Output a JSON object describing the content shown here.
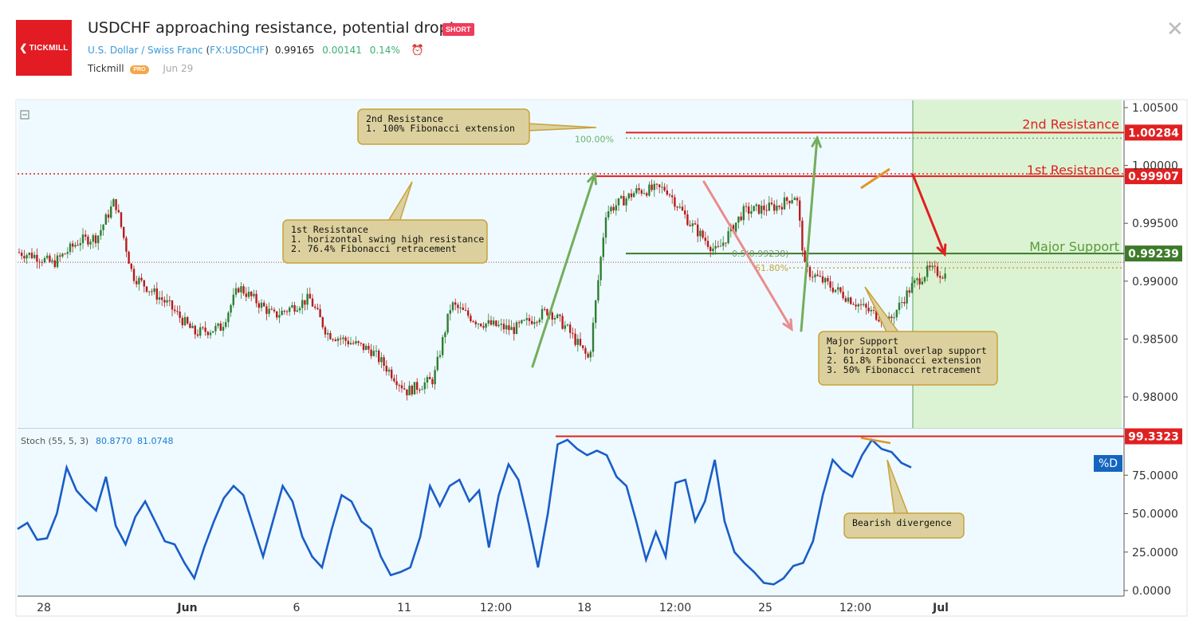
{
  "header": {
    "logo_text": "TICKMILL",
    "title": "USDCHF approaching resistance, potential drop!",
    "badge": "SHORT",
    "symbol_name": "U.S. Dollar / Swiss Franc",
    "symbol_code_open": "(",
    "symbol_code": "FX:USDCHF",
    "symbol_code_close": ")",
    "price": "0.99165",
    "change": "0.00141",
    "change_pct": "0.14%",
    "author": "Tickmill",
    "author_badge": "PRO",
    "date": "Jun 29"
  },
  "colors": {
    "price_bg": "#eefaff",
    "forecast_bg": "#dcf3d3",
    "resistance": "#e02020",
    "support": "#3d7a2a",
    "stoch_line": "#1a5dc8",
    "candle_up": "#2f7d32",
    "candle_down": "#b71c1c",
    "callout_bg": "#dcd19e",
    "callout_border": "#c9a13a"
  },
  "chart_data": [
    {
      "type": "candlestick",
      "title": "USDCHF approaching resistance, potential drop!",
      "ylim": [
        0.9775,
        1.0052
      ],
      "yticks": [
        "1.00500",
        "1.00000",
        "0.99500",
        "0.99000",
        "0.98500",
        "0.98000"
      ],
      "xticks": [
        "28",
        "Jun",
        "6",
        "11",
        "12:00",
        "18",
        "12:00",
        "25",
        "12:00",
        "Jul"
      ],
      "close_path": [
        [
          0,
          0.9925
        ],
        [
          0.02,
          0.9922
        ],
        [
          0.04,
          0.9915
        ],
        [
          0.07,
          0.9935
        ],
        [
          0.09,
          0.9938
        ],
        [
          0.11,
          0.997
        ],
        [
          0.13,
          0.9905
        ],
        [
          0.17,
          0.988
        ],
        [
          0.2,
          0.9855
        ],
        [
          0.23,
          0.986
        ],
        [
          0.25,
          0.9895
        ],
        [
          0.29,
          0.987
        ],
        [
          0.33,
          0.9885
        ],
        [
          0.35,
          0.9855
        ],
        [
          0.4,
          0.984
        ],
        [
          0.44,
          0.9805
        ],
        [
          0.47,
          0.9815
        ],
        [
          0.49,
          0.988
        ],
        [
          0.52,
          0.9865
        ],
        [
          0.56,
          0.9858
        ],
        [
          0.6,
          0.9875
        ],
        [
          0.62,
          0.986
        ],
        [
          0.646,
          0.9832
        ],
        [
          0.665,
          0.996
        ],
        [
          0.7,
          0.9978
        ],
        [
          0.733,
          0.998
        ],
        [
          0.76,
          0.995
        ],
        [
          0.79,
          0.9925
        ],
        [
          0.82,
          0.996
        ],
        [
          0.86,
          0.9965
        ],
        [
          0.88,
          0.9975
        ],
        [
          0.89,
          0.991
        ],
        [
          0.93,
          0.989
        ],
        [
          0.96,
          0.9875
        ],
        [
          0.985,
          0.9865
        ],
        [
          1.01,
          0.9895
        ],
        [
          1.03,
          0.991
        ],
        [
          1.05,
          0.9905
        ],
        [
          1.075,
          0.996
        ],
        [
          1.1,
          0.997
        ],
        [
          1.13,
          0.9985
        ],
        [
          1.15,
          0.993
        ],
        [
          1.17,
          0.9905
        ],
        [
          1.19,
          0.9915
        ]
      ],
      "price_tags": [
        {
          "value": "1.00284",
          "color": "#e02020"
        },
        {
          "value": "0.99907",
          "color": "#e02020"
        },
        {
          "value": "0.99239",
          "color": "#3d7a2a"
        }
      ],
      "levels": [
        {
          "name": "2nd Resistance",
          "value": 1.00284
        },
        {
          "name": "1st Resistance",
          "value": 0.99907
        },
        {
          "name": "Major Support",
          "value": 0.99239
        }
      ],
      "fib_labels": [
        "100.00%",
        "0.5(0.99238)",
        "61.80%"
      ],
      "annotations": {
        "r2": [
          "2nd Resistance",
          "1. 100% Fibonacci extension"
        ],
        "r1": [
          "1st Resistance",
          "1. horizontal swing high resistance",
          "2. 76.4% Fibonacci retracement"
        ],
        "sup": [
          "Major Support",
          "1. horizontal overlap support",
          "2. 61.8% Fibonacci extension",
          "3. 50% Fibonacci retracement"
        ]
      }
    },
    {
      "type": "line",
      "title": "Stoch (55, 5, 3)",
      "legend_values": [
        "80.8770",
        "81.0748"
      ],
      "ylim": [
        0,
        100
      ],
      "yticks": [
        "75.0000",
        "50.0000",
        "25.0000",
        "0.0000"
      ],
      "level_tag": "99.3323",
      "series_tag": "%D",
      "divergence_label": "Bearish divergence",
      "series": [
        {
          "values": [
            40,
            44,
            33,
            34,
            50,
            80,
            65,
            58,
            52,
            74,
            42,
            30,
            48,
            58,
            45,
            32,
            30,
            18,
            8,
            28,
            45,
            60,
            68,
            62,
            42,
            22,
            45,
            68,
            58,
            35,
            22,
            15,
            40,
            62,
            58,
            45,
            40,
            22,
            10,
            12,
            15,
            35,
            68,
            55,
            68,
            72,
            58,
            65,
            28,
            62,
            82,
            72,
            45,
            15,
            50,
            95,
            98,
            92,
            88,
            91,
            88,
            74,
            68,
            45,
            20,
            38,
            22,
            70,
            72,
            45,
            58,
            85,
            45,
            25,
            18,
            12,
            5,
            4,
            8,
            16,
            18,
            32,
            62,
            85,
            78,
            74,
            88,
            98,
            92,
            90,
            83,
            80
          ]
        }
      ]
    }
  ]
}
